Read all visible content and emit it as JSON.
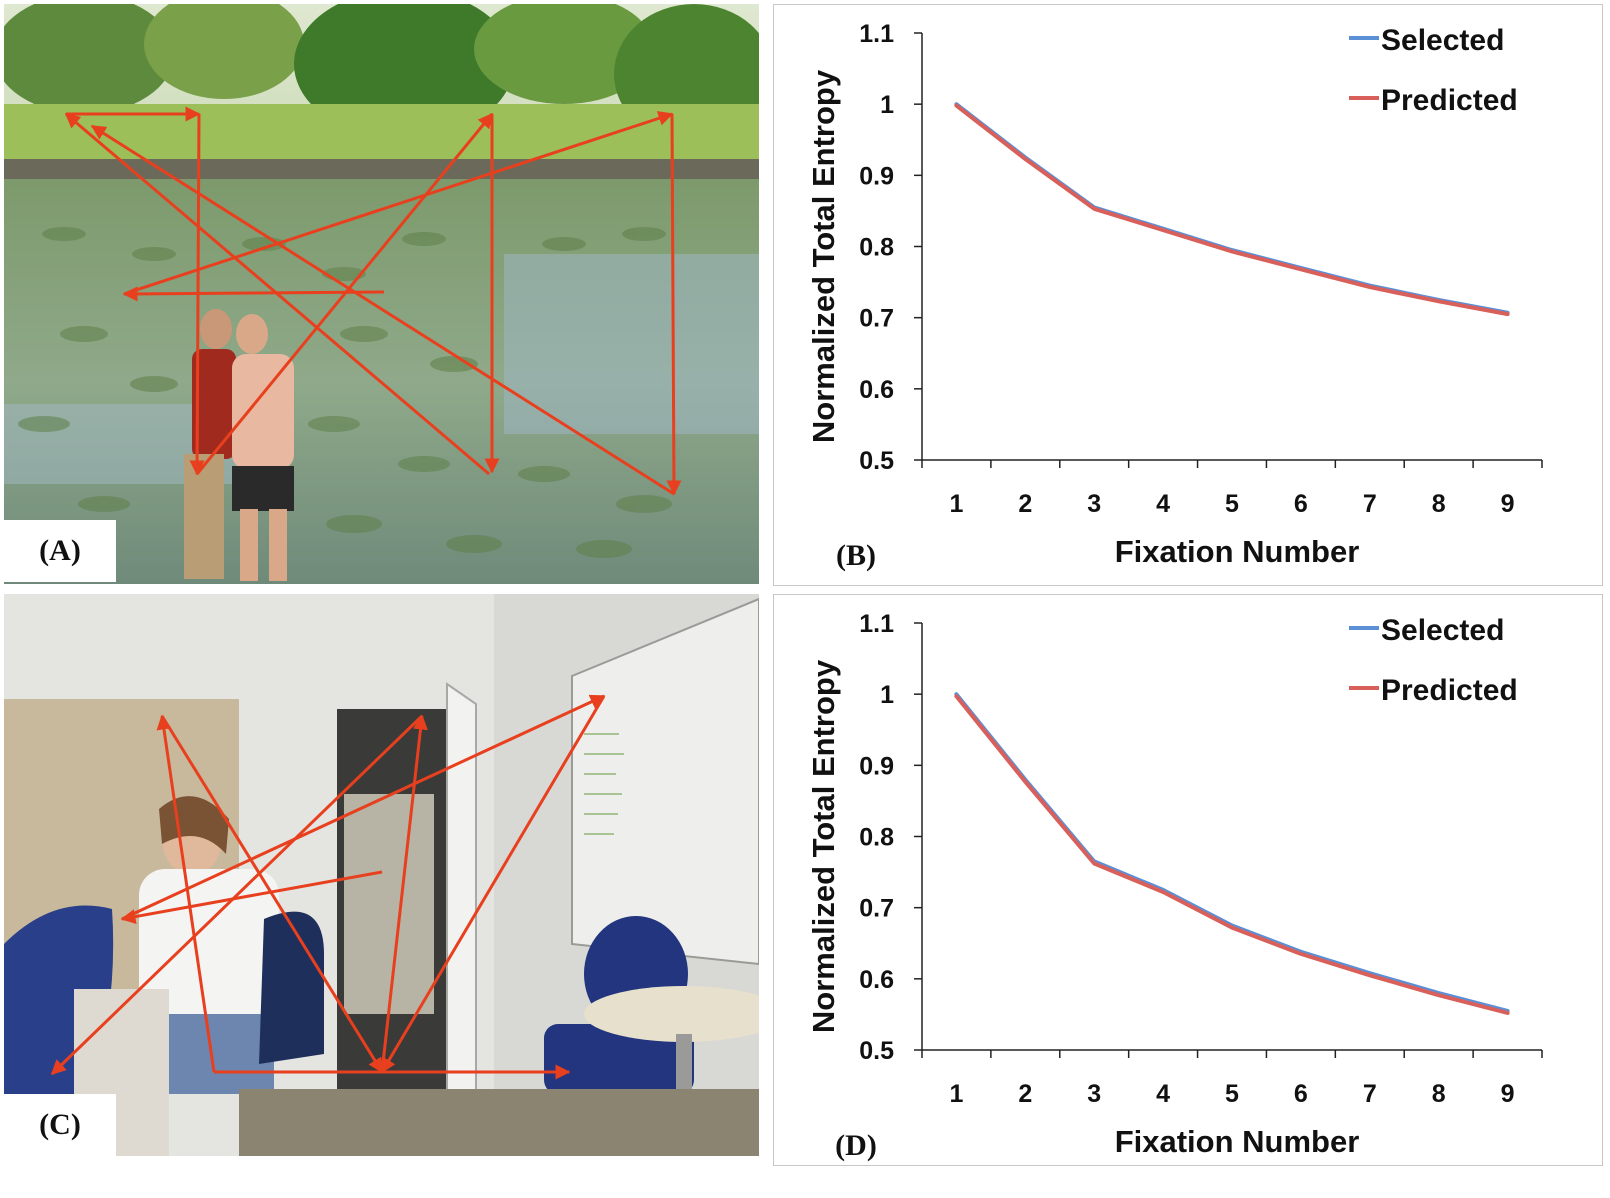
{
  "photos": [
    {
      "label": "(A)",
      "scene": "pond with water lilies and two women",
      "scanpath_color": "#e8401e"
    },
    {
      "label": "(C)",
      "scene": "office with woman at desk and blue chairs",
      "scanpath_color": "#e8401e"
    }
  ],
  "colors": {
    "selected": "#5b8fd6",
    "predicted": "#d9605a",
    "scanpath": "#e8401e"
  },
  "chart_data": [
    {
      "type": "line",
      "panel_label": "(B)",
      "xlabel": "Fixation Number",
      "ylabel": "Normalized  Total Entropy",
      "x": [
        1,
        2,
        3,
        4,
        5,
        6,
        7,
        8,
        9
      ],
      "x_ticks": [
        "1",
        "2",
        "3",
        "4",
        "5",
        "6",
        "7",
        "8",
        "9"
      ],
      "y_ticks": [
        "0.5",
        "0.6",
        "0.7",
        "0.8",
        "0.9",
        "1",
        "1.1"
      ],
      "ylim": [
        0.5,
        1.1
      ],
      "legend_position": "top-right",
      "series": [
        {
          "name": "Selected",
          "color": "#5b8fd6",
          "values": [
            1.0,
            0.925,
            0.855,
            0.825,
            0.795,
            0.77,
            0.745,
            0.725,
            0.707
          ]
        },
        {
          "name": "Predicted",
          "color": "#d9605a",
          "values": [
            0.998,
            0.923,
            0.853,
            0.823,
            0.793,
            0.768,
            0.743,
            0.723,
            0.705
          ]
        }
      ]
    },
    {
      "type": "line",
      "panel_label": "(D)",
      "xlabel": "Fixation Number",
      "ylabel": "Normalized  Total Entropy",
      "x": [
        1,
        2,
        3,
        4,
        5,
        6,
        7,
        8,
        9
      ],
      "x_ticks": [
        "1",
        "2",
        "3",
        "4",
        "5",
        "6",
        "7",
        "8",
        "9"
      ],
      "y_ticks": [
        "0.5",
        "0.6",
        "0.7",
        "0.8",
        "0.9",
        "1",
        "1.1"
      ],
      "ylim": [
        0.5,
        1.1
      ],
      "legend_position": "top-right",
      "series": [
        {
          "name": "Selected",
          "color": "#5b8fd6",
          "values": [
            1.0,
            0.88,
            0.765,
            0.725,
            0.675,
            0.638,
            0.608,
            0.58,
            0.555
          ]
        },
        {
          "name": "Predicted",
          "color": "#d9605a",
          "values": [
            0.997,
            0.877,
            0.762,
            0.722,
            0.672,
            0.635,
            0.605,
            0.577,
            0.552
          ]
        }
      ]
    }
  ]
}
